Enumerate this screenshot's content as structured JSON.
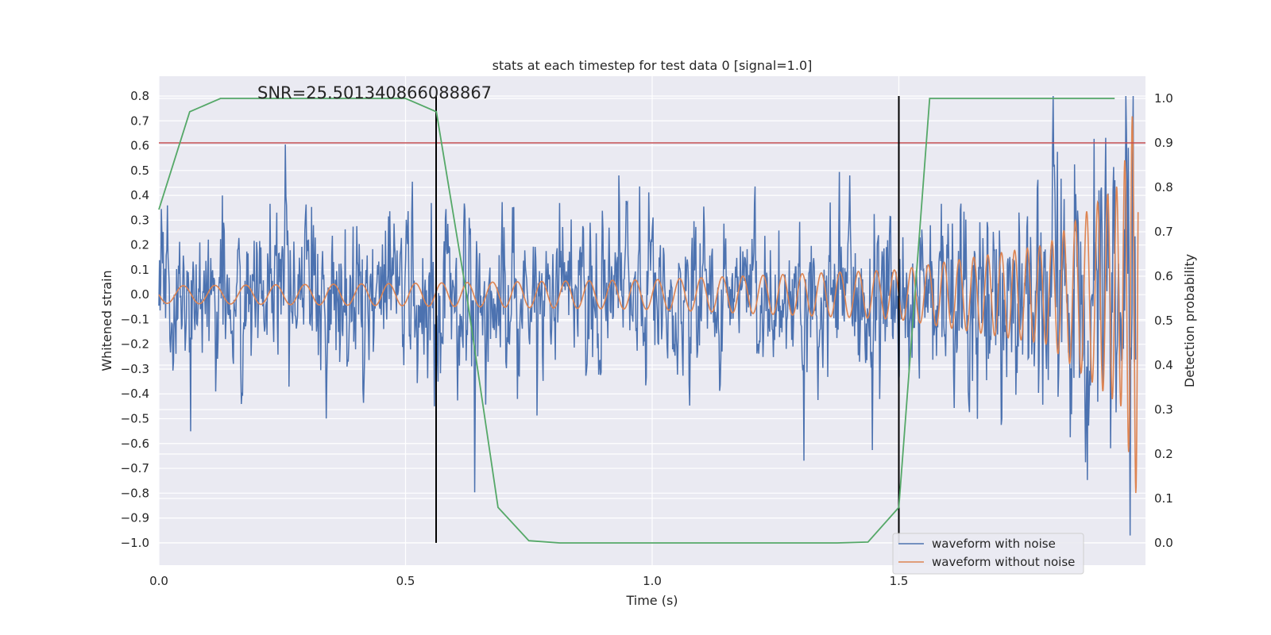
{
  "chart_data": {
    "type": "line",
    "title": "stats at each timestep for test data 0 [signal=1.0]",
    "xlabel": "Time (s)",
    "ylabel": "Whitened strain",
    "y2label": "Detection probability",
    "annotation": "SNR=25.501340866088867",
    "xlim": [
      0.0,
      2.0
    ],
    "ylim": [
      -1.09,
      0.88
    ],
    "y2lim": [
      -0.05,
      1.05
    ],
    "grid": true,
    "legend_position": "lower-right",
    "x_ticks": [
      0.0,
      0.5,
      1.0,
      1.5
    ],
    "x_tick_labels": [
      "0.0",
      "0.5",
      "1.0",
      "1.5"
    ],
    "y_ticks": [
      0.8,
      0.7,
      0.6,
      0.5,
      0.4,
      0.3,
      0.2,
      0.1,
      0.0,
      -0.1,
      -0.2,
      -0.3,
      -0.4,
      -0.5,
      -0.6,
      -0.7,
      -0.8,
      -0.9,
      -1.0
    ],
    "y_tick_labels": [
      "0.8",
      "0.7",
      "0.6",
      "0.5",
      "0.4",
      "0.3",
      "0.2",
      "0.1",
      "0.0",
      "−0.1",
      "−0.2",
      "−0.3",
      "−0.4",
      "−0.5",
      "−0.6",
      "−0.7",
      "−0.8",
      "−0.9",
      "−1.0"
    ],
    "y2_ticks": [
      1.0,
      0.9,
      0.8,
      0.7,
      0.6,
      0.5,
      0.4,
      0.3,
      0.2,
      0.1,
      0.0
    ],
    "y2_tick_labels": [
      "1.0",
      "0.9",
      "0.8",
      "0.7",
      "0.6",
      "0.5",
      "0.4",
      "0.3",
      "0.2",
      "0.1",
      "0.0"
    ],
    "threshold": {
      "axis": "y2",
      "value": 0.9,
      "color": "#c44e52"
    },
    "vertical_lines": [
      {
        "x": 0.562,
        "y_from": -1.0,
        "y_to": 0.8,
        "color": "#000000"
      },
      {
        "x": 1.5,
        "y_from": -1.0,
        "y_to": 0.8,
        "color": "#000000"
      }
    ],
    "series": [
      {
        "name": "waveform with noise",
        "color": "#4c72b0",
        "axis": "y1",
        "samples": 1600,
        "amplitude_envelope": [
          [
            0.0,
            0.16
          ],
          [
            0.5,
            0.17
          ],
          [
            1.0,
            0.16
          ],
          [
            1.5,
            0.18
          ],
          [
            1.7,
            0.22
          ],
          [
            1.9,
            0.3
          ],
          [
            2.0,
            0.35
          ]
        ]
      },
      {
        "name": "waveform without noise",
        "color": "#dd8452",
        "axis": "y1",
        "form": "chirp",
        "amplitude_envelope": [
          [
            0.0,
            0.035
          ],
          [
            0.5,
            0.045
          ],
          [
            1.0,
            0.06
          ],
          [
            1.5,
            0.1
          ],
          [
            1.8,
            0.2
          ],
          [
            1.95,
            0.45
          ],
          [
            1.98,
            0.8
          ]
        ],
        "frequency_envelope": [
          [
            0.0,
            15
          ],
          [
            1.0,
            22
          ],
          [
            1.5,
            28
          ],
          [
            1.9,
            45
          ],
          [
            1.98,
            70
          ]
        ]
      },
      {
        "name": "",
        "color": "#55a868",
        "axis": "y2",
        "x": [
          0.0,
          0.0625,
          0.125,
          0.1875,
          0.25,
          0.3125,
          0.375,
          0.4375,
          0.5,
          0.5625,
          0.625,
          0.6875,
          0.75,
          0.8125,
          0.875,
          0.9375,
          1.0,
          1.0625,
          1.125,
          1.1875,
          1.25,
          1.3125,
          1.375,
          1.4375,
          1.5,
          1.5625,
          1.625,
          1.6875,
          1.75,
          1.8125,
          1.875,
          1.9375
        ],
        "y": [
          0.75,
          0.97,
          1.0,
          1.0,
          1.0,
          1.0,
          1.0,
          1.0,
          1.0,
          0.97,
          0.55,
          0.08,
          0.005,
          0.0,
          0.0,
          0.0,
          0.0,
          0.0,
          0.0,
          0.0,
          0.0,
          0.0,
          0.0,
          0.002,
          0.08,
          1.0,
          1.0,
          1.0,
          1.0,
          1.0,
          1.0,
          1.0
        ]
      }
    ]
  }
}
